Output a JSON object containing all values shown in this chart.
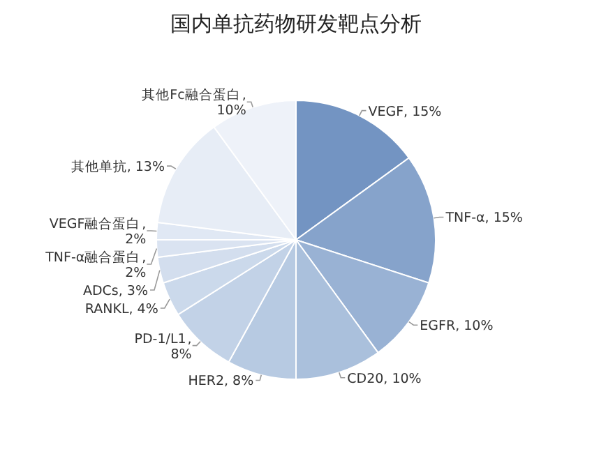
{
  "chart_data": {
    "type": "pie",
    "title": "国内单抗药物研发靶点分析",
    "categories": [
      "VEGF",
      "TNF-α",
      "EGFR",
      "CD20",
      "HER2",
      "PD-1/L1",
      "RANKL",
      "ADCs",
      "TNF-α融合蛋白",
      "VEGF融合蛋白",
      "其他单抗",
      "其他Fc融合蛋白"
    ],
    "values": [
      15,
      15,
      10,
      10,
      8,
      8,
      4,
      3,
      2,
      2,
      13,
      10
    ],
    "colors": [
      "#7394c2",
      "#86a3cb",
      "#99b2d4",
      "#aac0dc",
      "#b7cae2",
      "#c2d2e7",
      "#cbd9eb",
      "#d3deee",
      "#dae3f1",
      "#e0e8f4",
      "#e7edf6",
      "#eef2f9"
    ],
    "value_labels": [
      ", 15%",
      ", 15%",
      ", 10%",
      ", 10%",
      ", 8%",
      ", 8%",
      ", 4%",
      ", 3%",
      ", 2%",
      ", 2%",
      ", 13%",
      ", 10%"
    ],
    "legend": false
  }
}
